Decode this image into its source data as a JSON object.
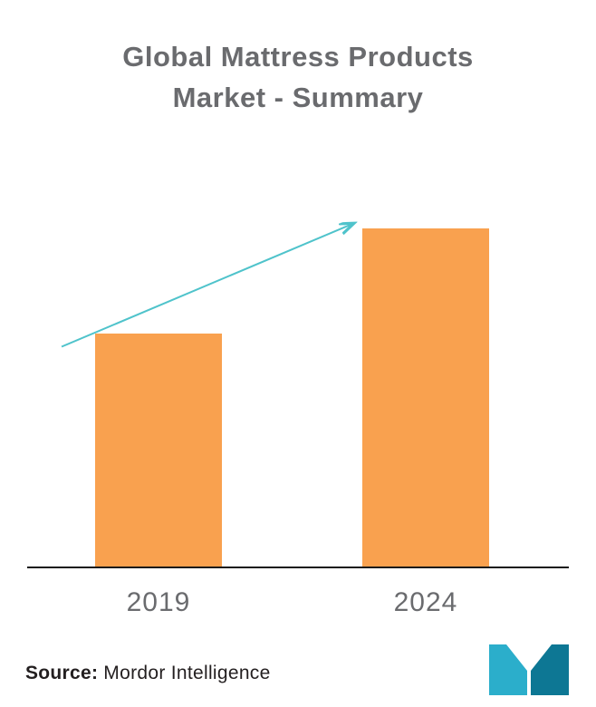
{
  "chart_data": {
    "type": "bar",
    "title": "Global Mattress Products Market - Summary",
    "categories": [
      "2019",
      "2024"
    ],
    "values": [
      100,
      145
    ],
    "xlabel": "",
    "ylabel": "",
    "ylim": [
      0,
      160
    ],
    "grid": false,
    "legend": false,
    "value_labels_shown": false,
    "annotations": [
      "upward trend arrow from 2019 bar toward top of 2024 bar"
    ]
  },
  "source": {
    "label": "Source:",
    "text": "Mordor Intelligence"
  },
  "icons": {
    "trend_arrow": "trend-arrow-icon",
    "logo": "mordor-intelligence-logo"
  },
  "colors": {
    "bar": "#F9A14F",
    "arrow": "#4FC3CB",
    "title": "#6A6B6E",
    "axis_label": "#6A6B6E",
    "axis_line": "#1A1A1A",
    "source_text": "#231F20",
    "logo_light": "#2BAECB",
    "logo_dark": "#0D7794",
    "background": "#FFFFFF"
  }
}
